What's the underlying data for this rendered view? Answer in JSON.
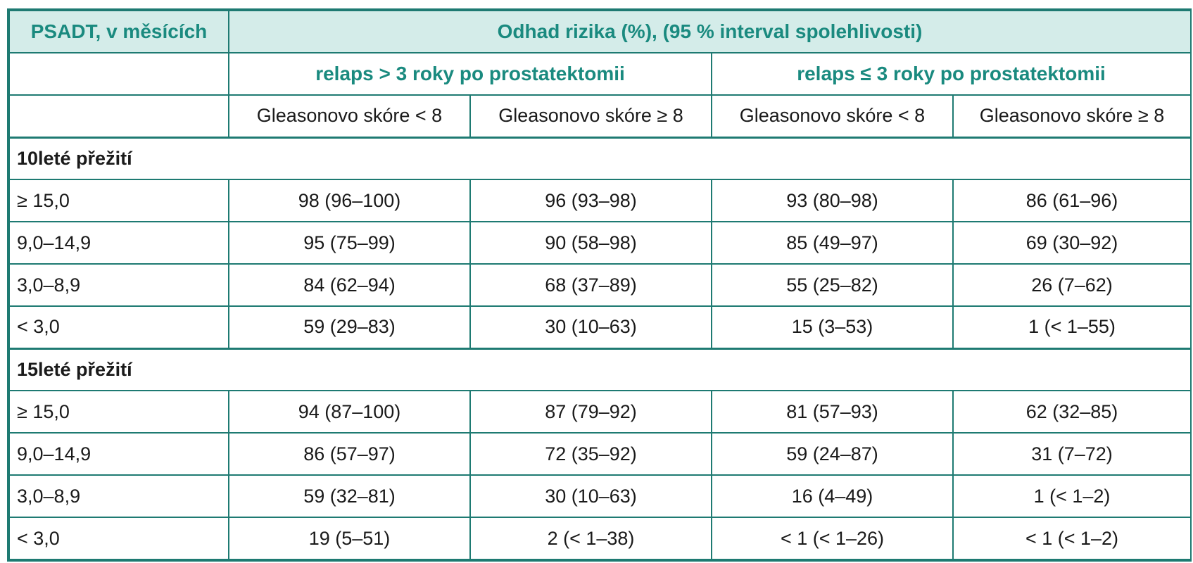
{
  "header": {
    "col0": "PSADT, v měsících",
    "main": "Odhad rizika (%), (95 % interval spolehlivosti)"
  },
  "groups": [
    "relaps > 3 roky po prostatektomii",
    "relaps ≤ 3 roky po prostatektomii"
  ],
  "subheaders": [
    "Gleasonovo skóre < 8",
    "Gleasonovo skóre ≥ 8",
    "Gleasonovo skóre < 8",
    "Gleasonovo skóre ≥ 8"
  ],
  "sections": [
    {
      "title": "10leté přežití",
      "rows": [
        {
          "label": "≥ 15,0",
          "values": [
            "98 (96–100)",
            "96 (93–98)",
            "93 (80–98)",
            "86 (61–96)"
          ]
        },
        {
          "label": "9,0–14,9",
          "values": [
            "95 (75–99)",
            "90 (58–98)",
            "85 (49–97)",
            "69 (30–92)"
          ]
        },
        {
          "label": "3,0–8,9",
          "values": [
            "84 (62–94)",
            "68 (37–89)",
            "55 (25–82)",
            "26 (7–62)"
          ]
        },
        {
          "label": "< 3,0",
          "values": [
            "59 (29–83)",
            "30 (10–63)",
            "15 (3–53)",
            "1 (< 1–55)"
          ]
        }
      ]
    },
    {
      "title": "15leté přežití",
      "rows": [
        {
          "label": "≥ 15,0",
          "values": [
            "94 (87–100)",
            "87 (79–92)",
            "81 (57–93)",
            "62 (32–85)"
          ]
        },
        {
          "label": "9,0–14,9",
          "values": [
            "86 (57–97)",
            "72 (35–92)",
            "59 (24–87)",
            "31 (7–72)"
          ]
        },
        {
          "label": "3,0–8,9",
          "values": [
            "59 (32–81)",
            "30 (10–63)",
            "16 (4–49)",
            "1 (< 1–2)"
          ]
        },
        {
          "label": "< 3,0",
          "values": [
            "19 (5–51)",
            "2 (< 1–38)",
            "< 1 (< 1–26)",
            "< 1 (< 1–2)"
          ]
        }
      ]
    }
  ],
  "colors": {
    "border": "#1e7a72",
    "header_bg": "#d4ece9",
    "accent_text": "#1a8a7f"
  }
}
